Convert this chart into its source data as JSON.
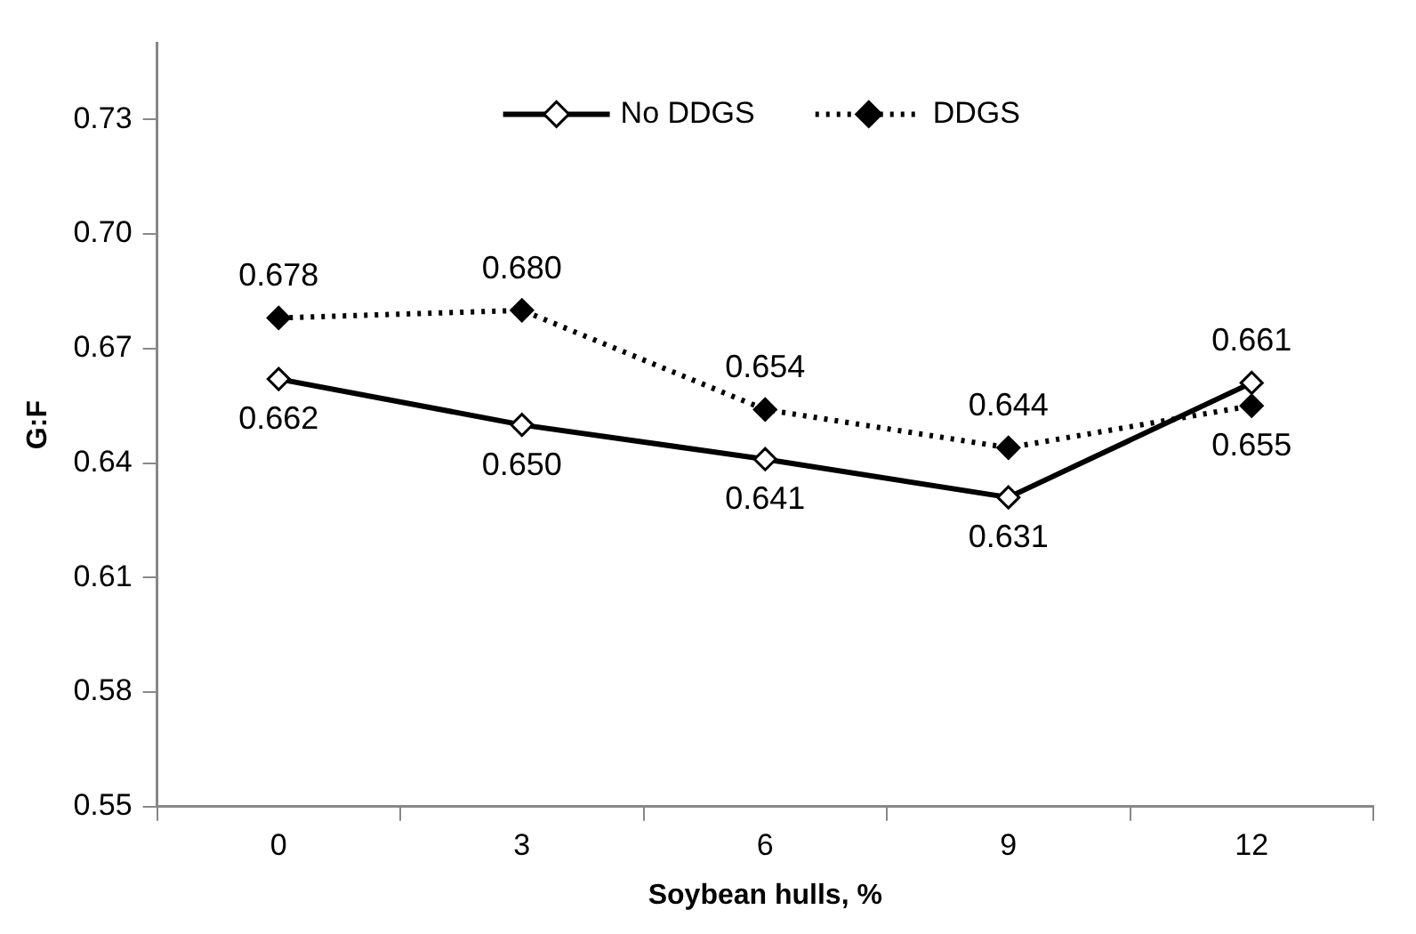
{
  "chart_data": {
    "type": "line",
    "xlabel": "Soybean hulls, %",
    "ylabel": "G:F",
    "categories": [
      "0",
      "3",
      "6",
      "9",
      "12"
    ],
    "series": [
      {
        "name": "No DDGS",
        "color": "#000000",
        "values": [
          0.662,
          0.65,
          0.641,
          0.631,
          0.661
        ],
        "value_labels": [
          "0.662",
          "0.650",
          "0.641",
          "0.631",
          "0.661"
        ],
        "marker": "diamond",
        "line_style": "solid"
      },
      {
        "name": "DDGS",
        "color": "#000000",
        "values": [
          0.678,
          0.68,
          0.654,
          0.644,
          0.655
        ],
        "value_labels": [
          "0.678",
          "0.680",
          "0.654",
          "0.644",
          "0.655"
        ],
        "marker": "diamond",
        "line_style": "dotted"
      }
    ],
    "ylim": [
      0.55,
      0.75
    ],
    "yticks": [
      0.55,
      0.58,
      0.61,
      0.64,
      0.67,
      {
        "value": 0.7,
        "label": "0.70"
      },
      0.73
    ],
    "grid": false,
    "legend": "top"
  }
}
